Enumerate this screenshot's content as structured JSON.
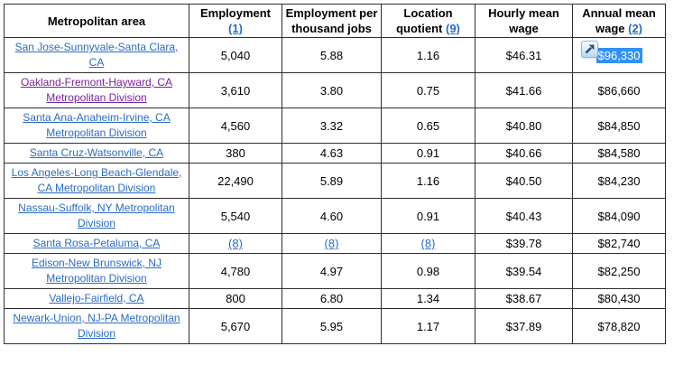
{
  "colors": {
    "link_blue": "#2a6bc6",
    "visited_purple": "#7b219b",
    "selection_blue": "#3191f5",
    "selection_text": "#ffffff",
    "border": "#2f2f2f",
    "accelerator_arrow": "#24486e"
  },
  "icons": {
    "accelerator": "ie-accelerator-arrow-icon"
  },
  "table": {
    "column_keys": [
      "metropolitan-area",
      "employment",
      "employment-per-thousand-jobs",
      "location-quotient",
      "hourly-mean-wage",
      "annual-mean-wage"
    ],
    "columns": [
      {
        "label": "Metropolitan area"
      },
      {
        "label": "Employment",
        "footnote": "(1)"
      },
      {
        "label": "Employment per thousand jobs"
      },
      {
        "label": "Location quotient",
        "footnote": "(9)"
      },
      {
        "label": "Hourly mean wage"
      },
      {
        "label": "Annual mean wage",
        "footnote": "(2)"
      }
    ],
    "rows": [
      {
        "area": {
          "text": "San Jose-Sunnyvale-Santa Clara, CA",
          "visited": false
        },
        "cells": [
          {
            "text": "5,040"
          },
          {
            "text": "5.88"
          },
          {
            "text": "1.16"
          },
          {
            "text": "$46.31"
          },
          {
            "text": "$96,330",
            "selected": true
          }
        ]
      },
      {
        "area": {
          "text": "Oakland-Fremont-Hayward, CA Metropolitan Division",
          "visited": true
        },
        "cells": [
          {
            "text": "3,610"
          },
          {
            "text": "3.80"
          },
          {
            "text": "0.75"
          },
          {
            "text": "$41.66"
          },
          {
            "text": "$86,660"
          }
        ]
      },
      {
        "area": {
          "text": "Santa Ana-Anaheim-Irvine, CA Metropolitan Division",
          "visited": false
        },
        "cells": [
          {
            "text": "4,560"
          },
          {
            "text": "3.32"
          },
          {
            "text": "0.65"
          },
          {
            "text": "$40.80"
          },
          {
            "text": "$84,850"
          }
        ]
      },
      {
        "area": {
          "text": "Santa Cruz-Watsonville, CA",
          "visited": false
        },
        "cells": [
          {
            "text": "380"
          },
          {
            "text": "4.63"
          },
          {
            "text": "0.91"
          },
          {
            "text": "$40.66"
          },
          {
            "text": "$84,580"
          }
        ]
      },
      {
        "area": {
          "text": "Los Angeles-Long Beach-Glendale, CA Metropolitan Division",
          "visited": false
        },
        "cells": [
          {
            "text": "22,490"
          },
          {
            "text": "5.89"
          },
          {
            "text": "1.16"
          },
          {
            "text": "$40.50"
          },
          {
            "text": "$84,230"
          }
        ]
      },
      {
        "area": {
          "text": "Nassau-Suffolk, NY Metropolitan Division",
          "visited": false
        },
        "cells": [
          {
            "text": "5,540"
          },
          {
            "text": "4.60"
          },
          {
            "text": "0.91"
          },
          {
            "text": "$40.43"
          },
          {
            "text": "$84,090"
          }
        ]
      },
      {
        "area": {
          "text": "Santa Rosa-Petaluma, CA",
          "visited": false
        },
        "cells": [
          {
            "text": "(8)",
            "link": true
          },
          {
            "text": "(8)",
            "link": true
          },
          {
            "text": "(8)",
            "link": true
          },
          {
            "text": "$39.78"
          },
          {
            "text": "$82,740"
          }
        ]
      },
      {
        "area": {
          "text": "Edison-New Brunswick, NJ Metropolitan Division",
          "visited": false
        },
        "cells": [
          {
            "text": "4,780"
          },
          {
            "text": "4.97"
          },
          {
            "text": "0.98"
          },
          {
            "text": "$39.54"
          },
          {
            "text": "$82,250"
          }
        ]
      },
      {
        "area": {
          "text": "Vallejo-Fairfield, CA",
          "visited": false
        },
        "cells": [
          {
            "text": "800"
          },
          {
            "text": "6.80"
          },
          {
            "text": "1.34"
          },
          {
            "text": "$38.67"
          },
          {
            "text": "$80,430"
          }
        ]
      },
      {
        "area": {
          "text": "Newark-Union, NJ-PA Metropolitan Division",
          "visited": false
        },
        "cells": [
          {
            "text": "5,670"
          },
          {
            "text": "5.95"
          },
          {
            "text": "1.17"
          },
          {
            "text": "$37.89"
          },
          {
            "text": "$78,820"
          }
        ]
      }
    ]
  }
}
